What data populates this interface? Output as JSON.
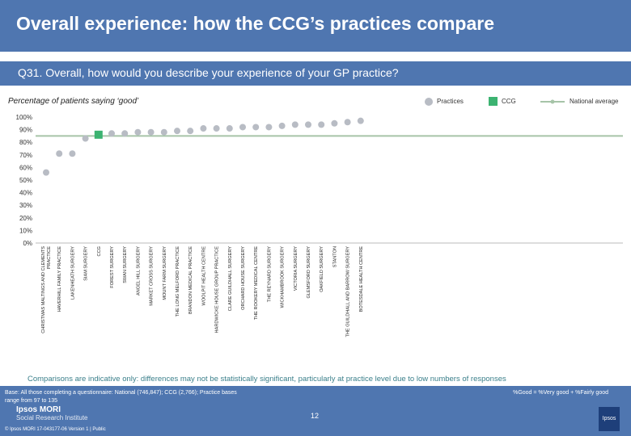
{
  "header": {
    "title": "Overall experience: how the CCG’s practices compare"
  },
  "question": "Q31. Overall, how would you describe your experience of your GP practice?",
  "subtitle": "Percentage of patients saying ‘good’",
  "legend": {
    "practices": "Practices",
    "ccg": "CCG",
    "national": "National average"
  },
  "colors": {
    "header": "#4f76b0",
    "practice": "#b8bcc4",
    "ccg": "#3cb371",
    "national": "#a6c4a8",
    "axis": "#bbbbbb"
  },
  "chart_data": {
    "type": "scatter",
    "ylim": [
      0,
      100
    ],
    "y_ticks": [
      "0%",
      "10%",
      "20%",
      "30%",
      "40%",
      "50%",
      "60%",
      "70%",
      "80%",
      "90%",
      "100%"
    ],
    "national_average": 85,
    "categories": [
      "CHRISTMAS MALTINGS AND CLEMENTS PRACTICE",
      "HAVERHILL FAMILY PRACTICE",
      "LAKENHEATH SURGERY",
      "SIAM SURGERY",
      "CCG",
      "FOREST SURGERY",
      "SWAN SURGERY",
      "ANGEL HILL SURGERY",
      "MARKET CROSS SURGERY",
      "MOUNT FARM SURGERY",
      "THE LONG MELFORD PRACTICE",
      "BRANDON MEDICAL PRACTICE",
      "WOOLPIT HEALTH CENTRE",
      "HARDWICKE HOUSE GROUP PRACTICE",
      "CLARE GUILDHALL SURGERY",
      "ORCHARD HOUSE SURGERY",
      "THE ROOKERY MEDICAL CENTRE",
      "THE REYNARD SURGERY",
      "WICKHAMBROOK SURGERY",
      "VICTORIA SURGERY",
      "GLEMSFORD SURGERY",
      "OAKFIELD SURGERY",
      "STANTON",
      "THE GUILDHALL AND BARROW SURGERY",
      "BOTESDALE HEALTH CENTRE"
    ],
    "values": [
      56,
      71,
      71,
      83,
      86,
      87,
      87,
      88,
      88,
      88,
      89,
      89,
      91,
      91,
      91,
      92,
      92,
      92,
      93,
      94,
      94,
      94,
      95,
      96,
      97
    ]
  },
  "comparisons": "Comparisons are indicative only: differences may not be statistically significant, particularly at practice level due to low numbers of responses",
  "footer": {
    "base": "Base: All those completing a questionnaire: National (746,847); CCG (2,766); Practice bases range from 97 to 135",
    "definition": "%Good = %Very good + %Fairly good",
    "page": "12",
    "logo_line1": "Ipsos MORI",
    "logo_line2": "Social Research Institute",
    "copyright": "© Ipsos MORI      17-043177-06 Version 1 | Public",
    "badge": "Ipsos"
  }
}
